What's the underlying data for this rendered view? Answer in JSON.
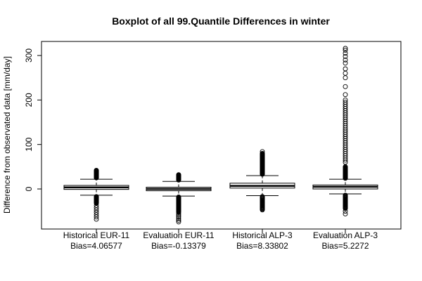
{
  "chart_data": {
    "type": "boxplot",
    "title": "Boxplot of all 99.Quantile Differences in winter",
    "xlabel": "",
    "ylabel": "Difference from observated data [mm/day]",
    "ylim": [
      -90,
      330
    ],
    "yticks": [
      0,
      100,
      200,
      300
    ],
    "grid": false,
    "series": [
      {
        "label_line1": "Historical EUR-11",
        "label_line2": "Bias=4.06577",
        "bias": 4.06577,
        "q1": -1,
        "median": 3.5,
        "q3": 8,
        "whisker_low": -14,
        "whisker_high": 22,
        "outliers": [
          {
            "from": 25,
            "to": 42,
            "n": 22
          },
          {
            "from": -17,
            "to": -32,
            "n": 20
          },
          {
            "from": -37,
            "to": -68,
            "n": 7
          }
        ]
      },
      {
        "label_line1": "Evaluation EUR-11",
        "label_line2": "Bias=-0.13379",
        "bias": -0.13379,
        "q1": -4,
        "median": 0,
        "q3": 4,
        "whisker_low": -16,
        "whisker_high": 17,
        "outliers": [
          {
            "from": 20,
            "to": 32,
            "n": 15
          },
          {
            "from": -18,
            "to": -52,
            "n": 40
          },
          {
            "from": -55,
            "to": -74,
            "n": 6
          }
        ]
      },
      {
        "label_line1": "Historical ALP-3",
        "label_line2": "Bias=8.33802",
        "bias": 8.33802,
        "q1": 2,
        "median": 7,
        "q3": 13,
        "whisker_low": -15,
        "whisker_high": 30,
        "outliers": [
          {
            "from": 33,
            "to": 80,
            "n": 50
          },
          {
            "from": -17,
            "to": -47,
            "n": 22
          },
          {
            "from": 84,
            "to": 84,
            "n": 1
          }
        ]
      },
      {
        "label_line1": "Evaluation ALP-3",
        "label_line2": "Bias=5.2272",
        "bias": 5.2272,
        "q1": 0,
        "median": 5,
        "q3": 9,
        "whisker_low": -11,
        "whisker_high": 22,
        "outliers": [
          {
            "from": 24,
            "to": 50,
            "n": 30
          },
          {
            "from": -14,
            "to": -44,
            "n": 25
          },
          {
            "from": -50,
            "to": -56,
            "n": 2
          },
          {
            "from": 60,
            "to": 200,
            "n": 30
          }
        ],
        "extreme_outliers": [
          212,
          230,
          250,
          260,
          270,
          283,
          290,
          298,
          305,
          312,
          316
        ]
      }
    ]
  }
}
